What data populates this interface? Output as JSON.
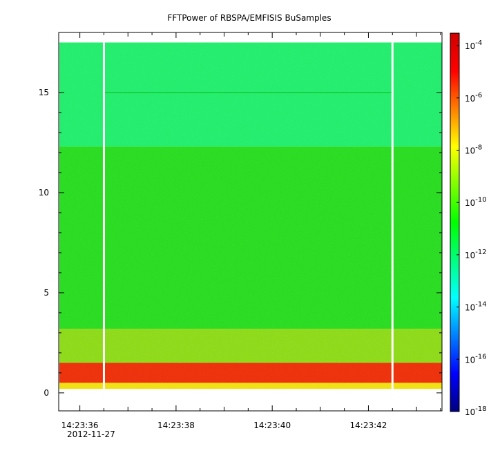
{
  "chart_data": {
    "type": "heatmap",
    "title": "FFTPower of RBSPA/EMFISIS  BuSamples",
    "xlabel": "",
    "ylabel": "",
    "date_label": "2012-11-27",
    "x_ticks": [
      "14:23:36",
      "14:23:38",
      "14:23:40",
      "14:23:42"
    ],
    "x_range": [
      "14:23:35.56",
      "14:23:43.53"
    ],
    "y_ticks": [
      0,
      5,
      10,
      15
    ],
    "y_range": [
      -0.9,
      18.0
    ],
    "data_top_y": 17.5,
    "data_bottom_y": 0.2,
    "data_gaps_x": [
      "14:23:36.5",
      "14:23:42.5"
    ],
    "colorbar": {
      "scale": "log",
      "range": [
        "1e-18",
        "3e-4"
      ],
      "tick_labels": [
        {
          "base": "10",
          "exp": "-4"
        },
        {
          "base": "10",
          "exp": "-6"
        },
        {
          "base": "10",
          "exp": "-8"
        },
        {
          "base": "10",
          "exp": "-10"
        },
        {
          "base": "10",
          "exp": "-12"
        },
        {
          "base": "10",
          "exp": "-14"
        },
        {
          "base": "10",
          "exp": "-16"
        },
        {
          "base": "10",
          "exp": "-18"
        }
      ],
      "colors": [
        "#00007f",
        "#0000ff",
        "#007fff",
        "#00ffff",
        "#00ff7f",
        "#00ff00",
        "#7fff00",
        "#ffff00",
        "#ff7f00",
        "#ff0000",
        "#d00000"
      ]
    },
    "bands": [
      {
        "y_from": 12.3,
        "y_to": 17.5,
        "level": "1e-12",
        "color": "#2cf07a"
      },
      {
        "y_from": 3.2,
        "y_to": 12.3,
        "level": "1e-10",
        "color": "#33e22a"
      },
      {
        "y_from": 1.5,
        "y_to": 3.2,
        "level": "1e-9",
        "color": "#9be022"
      },
      {
        "y_from": 0.5,
        "y_to": 1.5,
        "level": "1e-5",
        "color": "#f03a14"
      },
      {
        "y_from": 0.2,
        "y_to": 0.5,
        "level": "1e-7",
        "color": "#f3e51a"
      }
    ],
    "lines": [
      {
        "y": 15.0,
        "x_from": "14:23:36.5",
        "x_to": "14:23:42.5",
        "color": "#16d43f"
      }
    ],
    "grid": false
  }
}
